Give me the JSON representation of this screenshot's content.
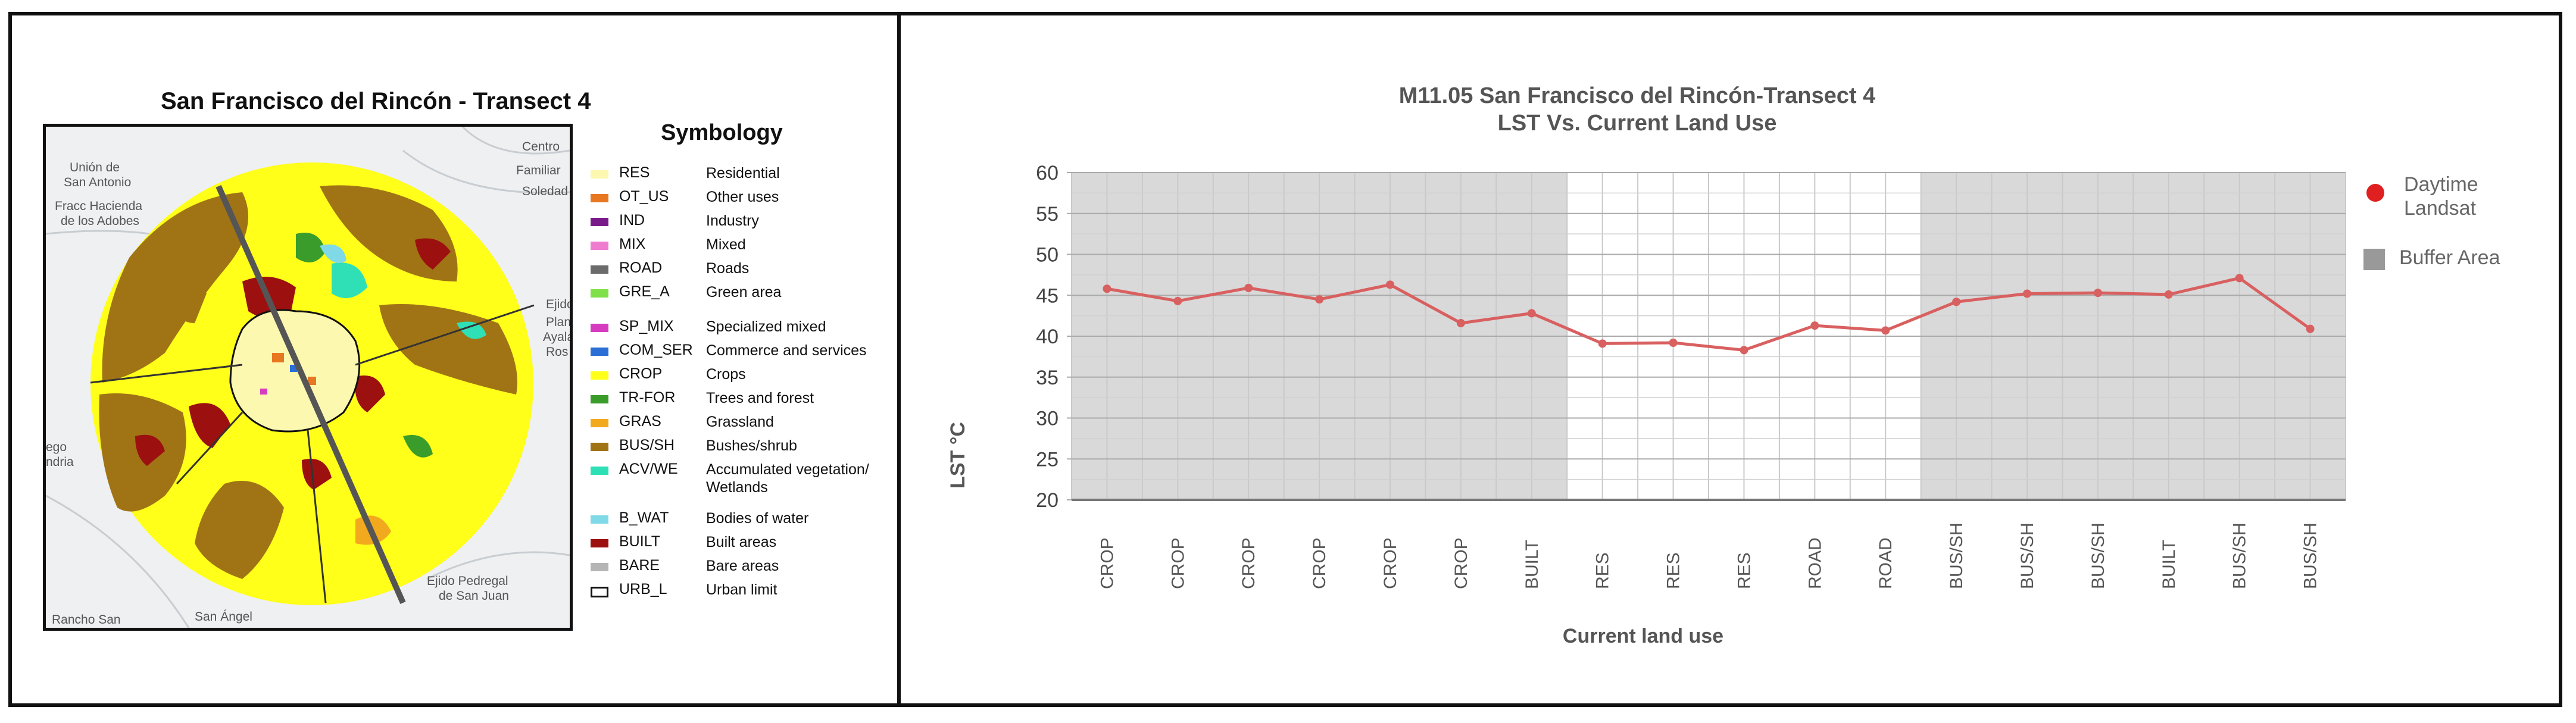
{
  "map": {
    "title": "San Francisco del Rincón - Transect 4",
    "labels": [
      "Unión de",
      "San Antonio",
      "Fracc Hacienda",
      "de los Adobes",
      "Centro",
      "Familiar",
      "Soledad",
      "Ejido",
      "Plan",
      "Ayala",
      "Ros",
      "Rancho San",
      "San Ángel",
      "Ejido Pedregal",
      "de San Juan",
      "ego",
      "ndria"
    ],
    "legend_title": "Symbology",
    "legend": [
      {
        "code": "RES",
        "desc": "Residential",
        "color": "#fdf8b0"
      },
      {
        "code": "OT_US",
        "desc": "Other uses",
        "color": "#e87722"
      },
      {
        "code": "IND",
        "desc": "Industry",
        "color": "#7a1a8a"
      },
      {
        "code": "MIX",
        "desc": "Mixed",
        "color": "#f07ccf"
      },
      {
        "code": "ROAD",
        "desc": "Roads",
        "color": "#6b6b6b"
      },
      {
        "code": "GRE_A",
        "desc": "Green area",
        "color": "#7fe04a"
      },
      {
        "code": "SP_MIX",
        "desc": "Specialized mixed",
        "color": "#d63cc0"
      },
      {
        "code": "COM_SER",
        "desc": "Commerce and services",
        "color": "#2b6fd6"
      },
      {
        "code": "CROP",
        "desc": "Crops",
        "color": "#ffff1a"
      },
      {
        "code": "TR-FOR",
        "desc": "Trees and forest",
        "color": "#3a9c2a"
      },
      {
        "code": "GRAS",
        "desc": "Grassland",
        "color": "#f2a91e"
      },
      {
        "code": "BUS/SH",
        "desc": "Bushes/shrub",
        "color": "#a07415"
      },
      {
        "code": "ACV/WE",
        "desc": "Accumulated vegetation/ Wetlands",
        "color": "#2fe0b6"
      },
      {
        "code": "B_WAT",
        "desc": "Bodies of water",
        "color": "#7fd9e6"
      },
      {
        "code": "BUILT",
        "desc": "Built areas",
        "color": "#9c1010"
      },
      {
        "code": "BARE",
        "desc": "Bare areas",
        "color": "#b5b5b5"
      },
      {
        "code": "URB_L",
        "desc": "Urban limit",
        "color": "#ffffff"
      }
    ]
  },
  "chart_data": {
    "type": "line",
    "title": "M11.05 San Francisco del Rincón-Transect 4",
    "subtitle": "LST Vs. Current Land Use",
    "xlabel": "Current land use",
    "ylabel": "LST °C",
    "ylim": [
      20,
      60
    ],
    "yticks": [
      20,
      25,
      30,
      35,
      40,
      45,
      50,
      55,
      60
    ],
    "grid": true,
    "legend_position": "right",
    "categories": [
      "CROP",
      "CROP",
      "CROP",
      "CROP",
      "CROP",
      "CROP",
      "BUILT",
      "RES",
      "RES",
      "RES",
      "ROAD",
      "ROAD",
      "BUS/SH",
      "BUS/SH",
      "BUS/SH",
      "BUILT",
      "BUS/SH",
      "BUS/SH"
    ],
    "series": [
      {
        "name": "Daytime Landsat",
        "color": "#d96060",
        "values": [
          45.8,
          44.3,
          45.9,
          44.5,
          46.3,
          41.6,
          42.8,
          39.1,
          39.2,
          38.3,
          41.3,
          40.7,
          44.2,
          45.2,
          45.3,
          45.1,
          47.1,
          40.9
        ]
      }
    ],
    "buffer_area": {
      "name": "Buffer Area",
      "color": "#d9d9d9",
      "shaded_ranges": [
        [
          0,
          6
        ],
        [
          12,
          17
        ]
      ]
    }
  }
}
